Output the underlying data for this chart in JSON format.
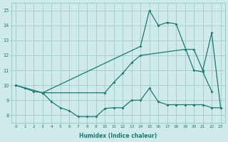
{
  "bg_color": "#ceeaea",
  "grid_color": "#a8cccc",
  "line_color": "#1e7a6e",
  "xlabel": "Humidex (Indice chaleur)",
  "xlim": [
    -0.5,
    23.5
  ],
  "ylim": [
    7.5,
    15.5
  ],
  "xtick_labels": [
    "0",
    "1",
    "2",
    "3",
    "4",
    "5",
    "6",
    "7",
    "8",
    "9",
    "10",
    "11",
    "12",
    "13",
    "14",
    "15",
    "16",
    "17",
    "18",
    "19",
    "20",
    "21",
    "22",
    "23"
  ],
  "ytick_labels": [
    "8",
    "9",
    "10",
    "11",
    "12",
    "13",
    "14",
    "15"
  ],
  "series": [
    {
      "x": [
        0,
        1,
        2,
        3,
        4,
        5,
        6,
        7,
        8,
        9,
        10,
        11,
        12,
        13,
        14,
        15,
        16,
        17,
        18,
        19,
        20,
        21,
        22,
        23
      ],
      "y": [
        10.0,
        9.8,
        9.6,
        9.5,
        8.9,
        8.5,
        8.3,
        7.9,
        7.9,
        7.9,
        8.45,
        8.5,
        8.5,
        9.0,
        9.0,
        9.8,
        8.9,
        8.7,
        8.7,
        8.7,
        8.7,
        8.7,
        8.5,
        8.5
      ]
    },
    {
      "x": [
        0,
        3,
        14,
        15,
        16,
        17,
        18,
        20,
        21,
        22
      ],
      "y": [
        10.0,
        9.5,
        12.6,
        15.0,
        14.0,
        14.2,
        14.1,
        11.0,
        10.9,
        9.6
      ]
    },
    {
      "x": [
        3,
        10,
        11,
        12,
        13,
        14,
        19,
        20,
        21,
        22,
        23
      ],
      "y": [
        9.5,
        9.5,
        10.2,
        10.8,
        11.5,
        12.0,
        12.4,
        12.4,
        11.0,
        13.5,
        8.5
      ]
    }
  ]
}
